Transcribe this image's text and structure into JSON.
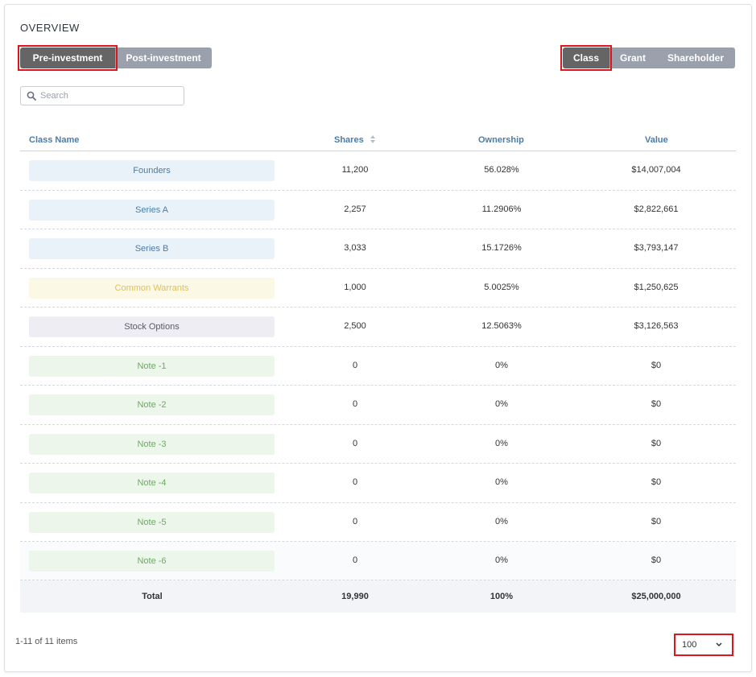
{
  "overview": {
    "title": "OVERVIEW",
    "view_tabs": [
      "Pre-investment",
      "Post-investment"
    ],
    "active_view": "Pre-investment",
    "group_tabs": [
      "Class",
      "Grant",
      "Shareholder"
    ],
    "active_group": "Class",
    "search": {
      "placeholder": "Search",
      "value": ""
    },
    "columns": {
      "class_name": "Class Name",
      "shares": "Shares",
      "ownership": "Ownership",
      "value": "Value"
    },
    "rows": [
      {
        "name": "Founders",
        "shares": "11,200",
        "ownership": "56.028%",
        "value": "$14,007,004",
        "tag_bg": "#e9f2f8",
        "tag_fg": "#4a7ca7"
      },
      {
        "name": "Series A",
        "shares": "2,257",
        "ownership": "11.2906%",
        "value": "$2,822,661",
        "tag_bg": "#e9f2f8",
        "tag_fg": "#4a7ca7"
      },
      {
        "name": "Series B",
        "shares": "3,033",
        "ownership": "15.1726%",
        "value": "$3,793,147",
        "tag_bg": "#e9f2f8",
        "tag_fg": "#4a7ca7"
      },
      {
        "name": "Common Warrants",
        "shares": "1,000",
        "ownership": "5.0025%",
        "value": "$1,250,625",
        "tag_bg": "#fbf8e6",
        "tag_fg": "#e0bf5c"
      },
      {
        "name": "Stock Options",
        "shares": "2,500",
        "ownership": "12.5063%",
        "value": "$3,126,563",
        "tag_bg": "#eeedf3",
        "tag_fg": "#5a5a66"
      },
      {
        "name": "Note -1",
        "shares": "0",
        "ownership": "0%",
        "value": "$0",
        "tag_bg": "#ecf6ea",
        "tag_fg": "#6bab5f"
      },
      {
        "name": "Note -2",
        "shares": "0",
        "ownership": "0%",
        "value": "$0",
        "tag_bg": "#ecf6ea",
        "tag_fg": "#6bab5f"
      },
      {
        "name": "Note -3",
        "shares": "0",
        "ownership": "0%",
        "value": "$0",
        "tag_bg": "#ecf6ea",
        "tag_fg": "#6bab5f"
      },
      {
        "name": "Note -4",
        "shares": "0",
        "ownership": "0%",
        "value": "$0",
        "tag_bg": "#ecf6ea",
        "tag_fg": "#6bab5f"
      },
      {
        "name": "Note -5",
        "shares": "0",
        "ownership": "0%",
        "value": "$0",
        "tag_bg": "#ecf6ea",
        "tag_fg": "#6bab5f"
      },
      {
        "name": "Note -6",
        "shares": "0",
        "ownership": "0%",
        "value": "$0",
        "tag_bg": "#ecf6ea",
        "tag_fg": "#6bab5f"
      }
    ],
    "total": {
      "label": "Total",
      "shares": "19,990",
      "ownership": "100%",
      "value": "$25,000,000"
    },
    "footer": {
      "count_text": "1-11 of 11 items",
      "page_size": "100"
    },
    "icons": {
      "search": "search-icon",
      "sort": "sort-icon",
      "chevron": "chevron-down-icon"
    }
  }
}
